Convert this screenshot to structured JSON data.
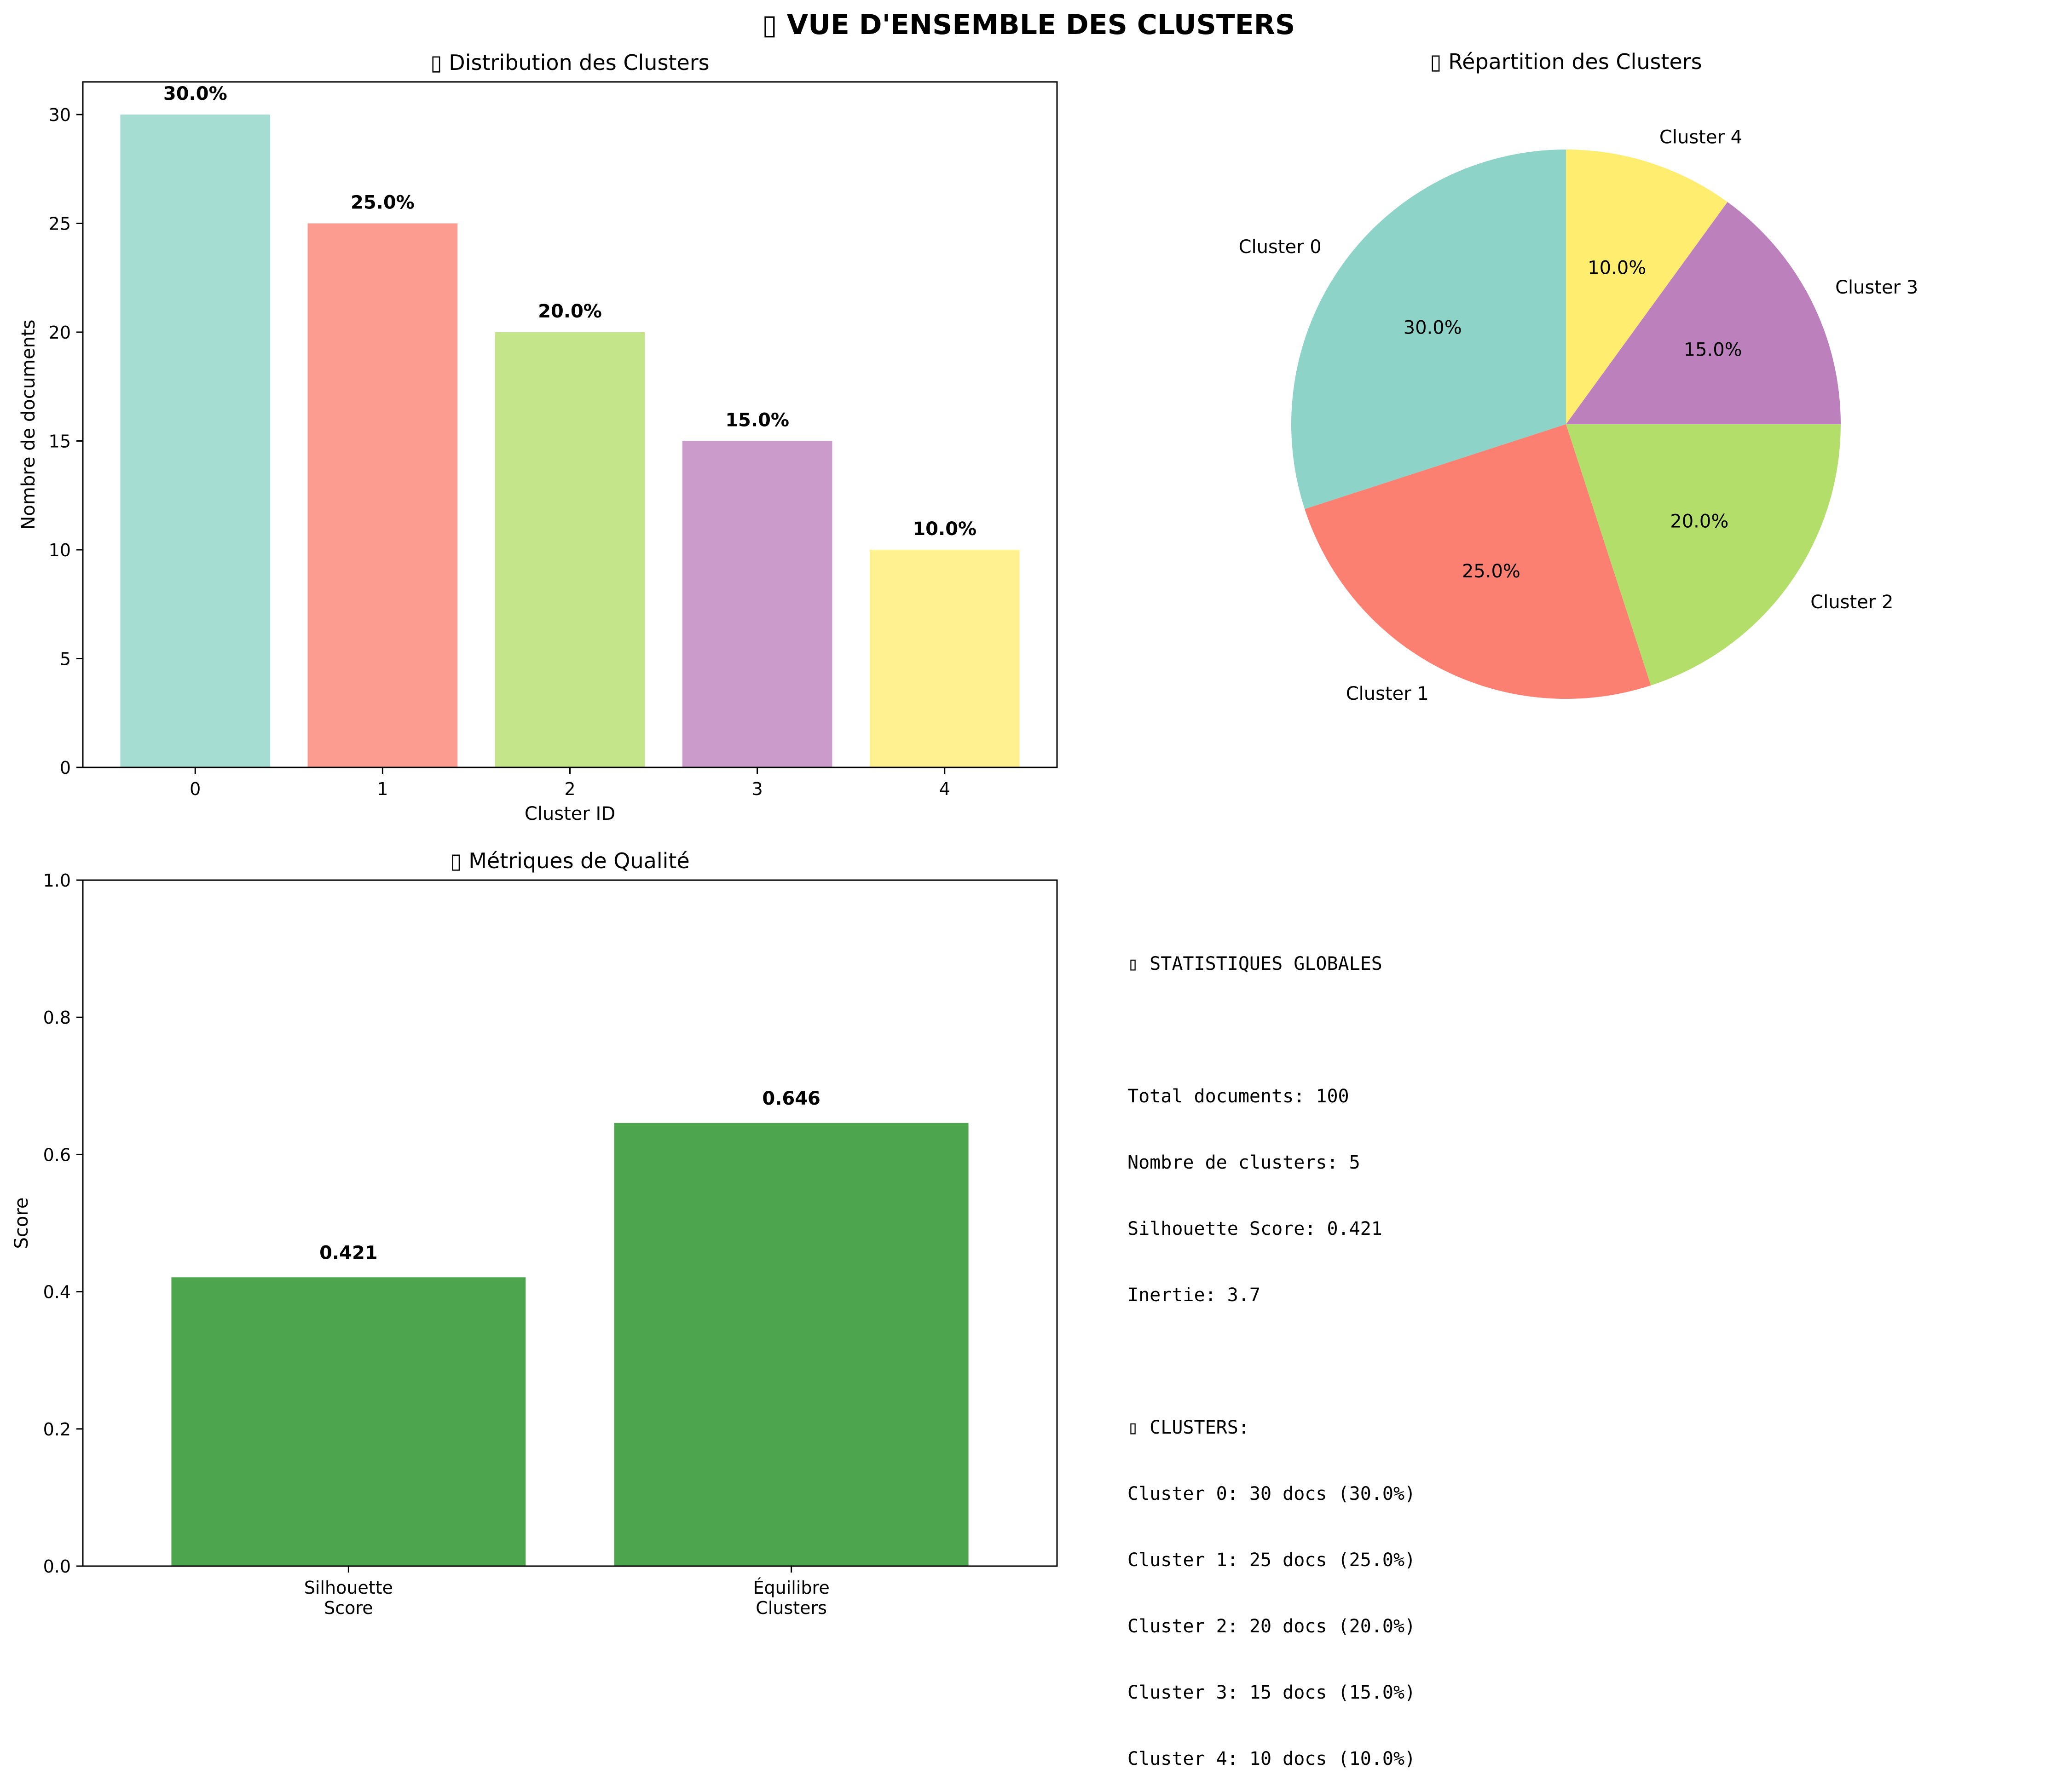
{
  "figure": {
    "title": "▯ VUE D'ENSEMBLE DES CLUSTERS"
  },
  "chart_data": [
    {
      "type": "bar",
      "title": "▯ Distribution des Clusters",
      "xlabel": "Cluster ID",
      "ylabel": "Nombre de documents",
      "categories": [
        "0",
        "1",
        "2",
        "3",
        "4"
      ],
      "values": [
        30,
        25,
        20,
        15,
        10
      ],
      "data_labels": [
        "30.0%",
        "25.0%",
        "20.0%",
        "15.0%",
        "10.0%"
      ],
      "colors": [
        "#8dd3c7",
        "#fb8072",
        "#b3de69",
        "#bc80bd",
        "#ffed6f"
      ],
      "ylim": [
        0,
        31.5
      ],
      "yticks": [
        0,
        5,
        10,
        15,
        20,
        25,
        30
      ],
      "grid": false
    },
    {
      "type": "pie",
      "title": "▯ Répartition des Clusters",
      "labels": [
        "Cluster 0",
        "Cluster 1",
        "Cluster 2",
        "Cluster 3",
        "Cluster 4"
      ],
      "values": [
        30,
        25,
        20,
        15,
        10
      ],
      "pct_labels": [
        "30.0%",
        "25.0%",
        "20.0%",
        "15.0%",
        "10.0%"
      ],
      "colors": [
        "#8dd3c7",
        "#fb8072",
        "#b3de69",
        "#bc80bd",
        "#ffed6f"
      ],
      "start_angle_deg": 90,
      "direction": "counterclockwise"
    },
    {
      "type": "bar",
      "title": "▯ Métriques de Qualité",
      "xlabel": "",
      "ylabel": "Score",
      "categories": [
        [
          "Silhouette",
          "Score"
        ],
        [
          "Équilibre",
          "Clusters"
        ]
      ],
      "values": [
        0.421,
        0.646
      ],
      "data_labels": [
        "0.421",
        "0.646"
      ],
      "colors": [
        "#4da64d",
        "#4da64d"
      ],
      "ylim": [
        0,
        1.0
      ],
      "yticks": [
        "0.0",
        "0.2",
        "0.4",
        "0.6",
        "0.8",
        "1.0"
      ],
      "grid": false
    }
  ],
  "stats": {
    "heading": "▯ STATISTIQUES GLOBALES",
    "total": "Total documents: 100",
    "n_clusters": "Nombre de clusters: 5",
    "silhouette": "Silhouette Score: 0.421",
    "inertia": "Inertie: 3.7",
    "clusters_heading": "▯ CLUSTERS:",
    "lines": [
      "Cluster 0: 30 docs (30.0%)",
      "Cluster 1: 25 docs (25.0%)",
      "Cluster 2: 20 docs (20.0%)",
      "Cluster 3: 15 docs (15.0%)",
      "Cluster 4: 10 docs (10.0%)"
    ]
  }
}
